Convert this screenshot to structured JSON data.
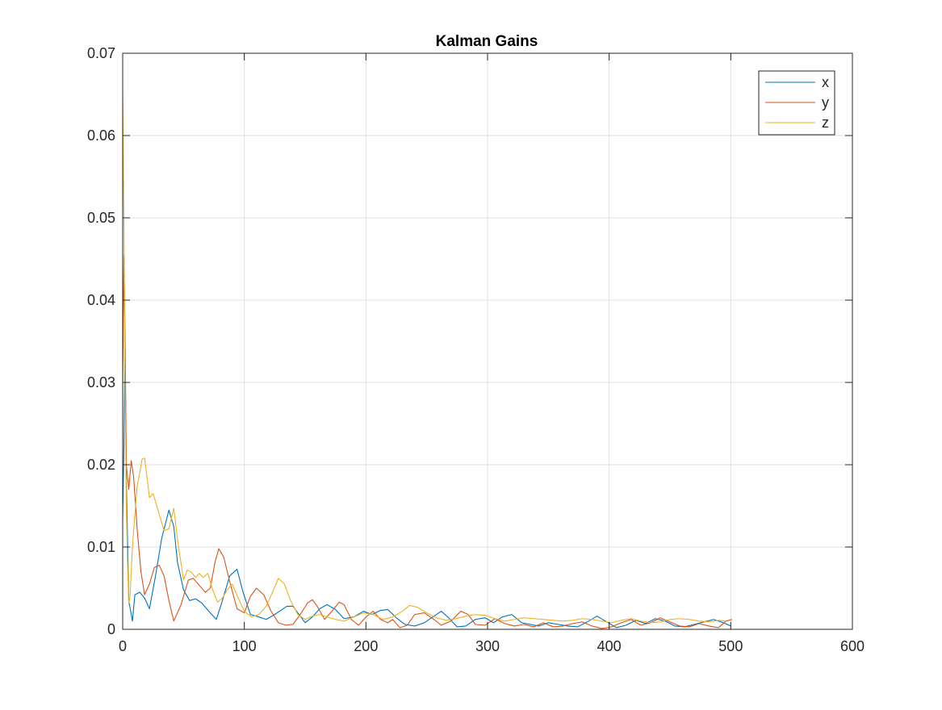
{
  "colors": {
    "x": "#0072BD",
    "y": "#D95319",
    "z": "#EDB120",
    "grid": "#DFDFDF",
    "axes": "#262626",
    "background": "#FFFFFF"
  },
  "chart_data": {
    "type": "line",
    "title": "Kalman Gains",
    "xlabel": "",
    "ylabel": "",
    "xlim": [
      0,
      600
    ],
    "ylim": [
      0,
      0.07
    ],
    "xticks": [
      0,
      100,
      200,
      300,
      400,
      500,
      600
    ],
    "yticks": [
      0,
      0.01,
      0.02,
      0.03,
      0.04,
      0.05,
      0.06,
      0.07
    ],
    "xtick_labels": [
      "0",
      "100",
      "200",
      "300",
      "400",
      "500",
      "600"
    ],
    "ytick_labels": [
      "0",
      "0.01",
      "0.02",
      "0.03",
      "0.04",
      "0.05",
      "0.06",
      "0.07"
    ],
    "grid": true,
    "legend_position": "top-right",
    "series": [
      {
        "name": "x",
        "color": "#0072BD",
        "x": [
          0,
          1,
          2,
          3,
          5,
          8,
          10,
          14,
          18,
          22,
          27,
          32,
          38,
          42,
          45,
          50,
          55,
          60,
          65,
          72,
          77,
          82,
          88,
          94,
          99,
          105,
          112,
          118,
          125,
          130,
          135,
          140,
          145,
          150,
          156,
          162,
          168,
          175,
          182,
          190,
          198,
          205,
          212,
          218,
          225,
          232,
          240,
          248,
          255,
          262,
          268,
          275,
          282,
          290,
          298,
          305,
          312,
          320,
          328,
          335,
          342,
          350,
          358,
          366,
          374,
          382,
          390,
          398,
          406,
          414,
          422,
          430,
          438,
          446,
          454,
          462,
          470,
          478,
          486,
          494,
          500
        ],
        "y": [
          0.0135,
          0.022,
          0.0345,
          0.018,
          0.0035,
          0.001,
          0.0042,
          0.0045,
          0.0038,
          0.0025,
          0.0065,
          0.011,
          0.0145,
          0.0125,
          0.0082,
          0.0048,
          0.0035,
          0.0037,
          0.0032,
          0.002,
          0.0012,
          0.0035,
          0.0065,
          0.0073,
          0.0045,
          0.0018,
          0.0015,
          0.0012,
          0.0018,
          0.0023,
          0.0028,
          0.0028,
          0.0018,
          0.0008,
          0.0015,
          0.0025,
          0.003,
          0.0024,
          0.0013,
          0.0015,
          0.0022,
          0.0018,
          0.0023,
          0.0024,
          0.0014,
          0.0006,
          0.0004,
          0.0008,
          0.0015,
          0.0022,
          0.0014,
          0.0003,
          0.0004,
          0.0012,
          0.0014,
          0.0008,
          0.0015,
          0.0018,
          0.0008,
          0.0006,
          0.0004,
          0.0008,
          0.0006,
          0.0004,
          0.0003,
          0.0009,
          0.0016,
          0.0009,
          0.0002,
          0.0005,
          0.0011,
          0.0007,
          0.0013,
          0.001,
          0.0004,
          0.0003,
          0.0006,
          0.0009,
          0.0012,
          0.0008,
          0.0004
        ]
      },
      {
        "name": "y",
        "color": "#D95319",
        "x": [
          0,
          1,
          2,
          3,
          5,
          7,
          9,
          12,
          15,
          18,
          22,
          26,
          30,
          34,
          38,
          42,
          48,
          54,
          58,
          62,
          68,
          72,
          76,
          79,
          83,
          88,
          94,
          100,
          105,
          110,
          116,
          122,
          128,
          134,
          140,
          146,
          152,
          156,
          160,
          166,
          172,
          178,
          182,
          188,
          194,
          200,
          206,
          212,
          218,
          222,
          228,
          234,
          240,
          248,
          256,
          262,
          270,
          278,
          284,
          290,
          298,
          306,
          314,
          322,
          330,
          338,
          346,
          354,
          362,
          370,
          378,
          386,
          394,
          402,
          410,
          418,
          426,
          434,
          442,
          450,
          458,
          466,
          474,
          482,
          490,
          496,
          501
        ],
        "y": [
          0.03,
          0.0455,
          0.035,
          0.02,
          0.017,
          0.0205,
          0.0185,
          0.012,
          0.007,
          0.0042,
          0.0055,
          0.0075,
          0.0078,
          0.0065,
          0.0035,
          0.001,
          0.003,
          0.006,
          0.0062,
          0.0055,
          0.0045,
          0.005,
          0.0082,
          0.0098,
          0.0088,
          0.0058,
          0.0025,
          0.002,
          0.004,
          0.005,
          0.0042,
          0.0022,
          0.0008,
          0.0005,
          0.0006,
          0.0018,
          0.0032,
          0.0036,
          0.0028,
          0.0012,
          0.0022,
          0.0033,
          0.003,
          0.0012,
          0.0005,
          0.0015,
          0.0022,
          0.0012,
          0.0008,
          0.0012,
          0.0002,
          0.0005,
          0.0018,
          0.002,
          0.0012,
          0.0005,
          0.001,
          0.0022,
          0.0018,
          0.0006,
          0.0005,
          0.0013,
          0.0007,
          0.0004,
          0.0006,
          0.0003,
          0.0008,
          0.0003,
          0.0004,
          0.0007,
          0.0009,
          0.0004,
          0.0001,
          0.0003,
          0.0008,
          0.0012,
          0.0005,
          0.0008,
          0.0014,
          0.0009,
          0.0004,
          0.0003,
          0.0007,
          0.0004,
          0.0002,
          0.001,
          0.0012
        ]
      },
      {
        "name": "z",
        "color": "#EDB120",
        "x": [
          0,
          1,
          2,
          3,
          4,
          5,
          6,
          8,
          10,
          12,
          14,
          16,
          18,
          20,
          22,
          25,
          28,
          31,
          34,
          38,
          42,
          45,
          48,
          50,
          53,
          56,
          60,
          63,
          66,
          70,
          74,
          78,
          82,
          86,
          90,
          95,
          100,
          106,
          112,
          118,
          124,
          128,
          133,
          138,
          144,
          150,
          156,
          162,
          168,
          175,
          182,
          190,
          198,
          206,
          214,
          222,
          230,
          236,
          242,
          250,
          258,
          266,
          274,
          282,
          290,
          298,
          306,
          314,
          322,
          330,
          338,
          346,
          354,
          362,
          370,
          378,
          386,
          394,
          402,
          410,
          418,
          426,
          434,
          442,
          450,
          458,
          466,
          474,
          482,
          490,
          496
        ],
        "y": [
          0.065,
          0.05,
          0.03,
          0.015,
          0.008,
          0.003,
          0.004,
          0.01,
          0.014,
          0.0175,
          0.019,
          0.0207,
          0.0208,
          0.0185,
          0.016,
          0.0165,
          0.015,
          0.0135,
          0.012,
          0.0122,
          0.0147,
          0.011,
          0.008,
          0.006,
          0.0072,
          0.007,
          0.0063,
          0.0068,
          0.0063,
          0.0068,
          0.0048,
          0.0033,
          0.0038,
          0.0048,
          0.0055,
          0.0038,
          0.0022,
          0.0015,
          0.0018,
          0.0028,
          0.0048,
          0.0062,
          0.0055,
          0.0035,
          0.0018,
          0.0012,
          0.0016,
          0.0018,
          0.0015,
          0.0012,
          0.001,
          0.0015,
          0.002,
          0.0018,
          0.0012,
          0.0015,
          0.0022,
          0.0029,
          0.0027,
          0.002,
          0.0014,
          0.0011,
          0.0013,
          0.0016,
          0.0018,
          0.0017,
          0.0013,
          0.001,
          0.0012,
          0.0014,
          0.0013,
          0.0012,
          0.0011,
          0.001,
          0.0011,
          0.0013,
          0.0012,
          0.001,
          0.0008,
          0.0011,
          0.0013,
          0.001,
          0.0008,
          0.0009,
          0.0012,
          0.0013,
          0.0012,
          0.001,
          0.0009,
          0.0011,
          0.001
        ]
      }
    ]
  }
}
